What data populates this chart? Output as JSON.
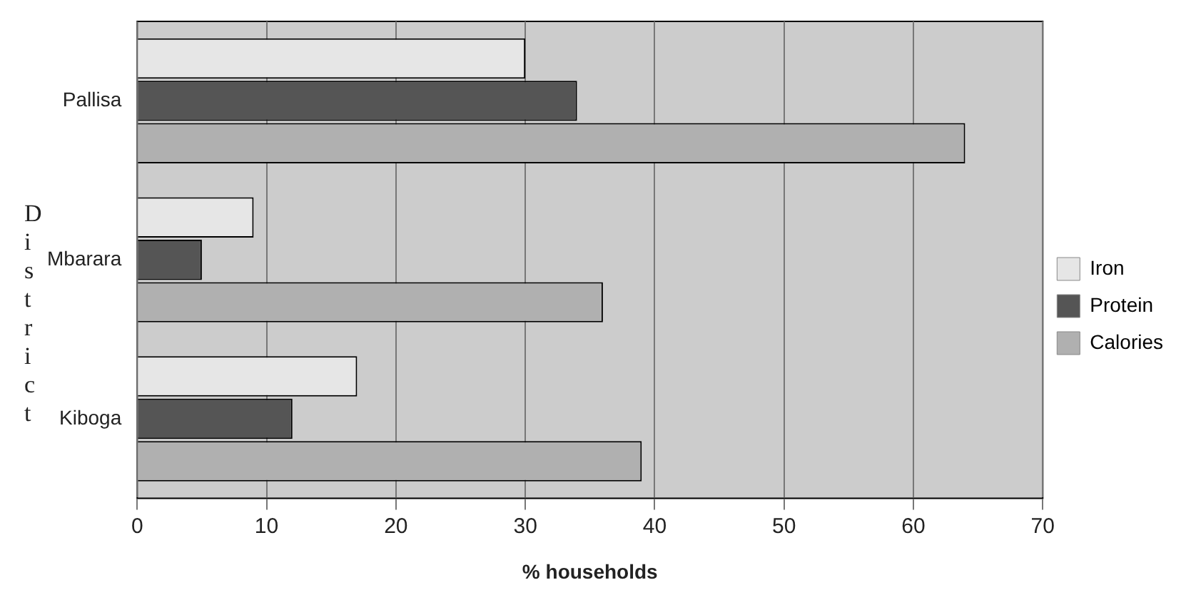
{
  "chart_data": {
    "type": "bar",
    "orientation": "horizontal",
    "xlabel": "% households",
    "ylabel": "District",
    "categories": [
      "Pallisa",
      "Mbarara",
      "Kiboga"
    ],
    "series": [
      {
        "name": "Iron",
        "color": "#e6e6e6",
        "values": [
          30,
          9,
          17
        ]
      },
      {
        "name": "Protein",
        "color": "#555555",
        "values": [
          34,
          5,
          12
        ]
      },
      {
        "name": "Calories",
        "color": "#b0b0b0",
        "values": [
          64,
          36,
          39
        ]
      }
    ],
    "xlim": [
      0,
      70
    ],
    "xticks": [
      0,
      10,
      20,
      30,
      40,
      50,
      60,
      70
    ],
    "grid": "x",
    "legend": "right"
  }
}
